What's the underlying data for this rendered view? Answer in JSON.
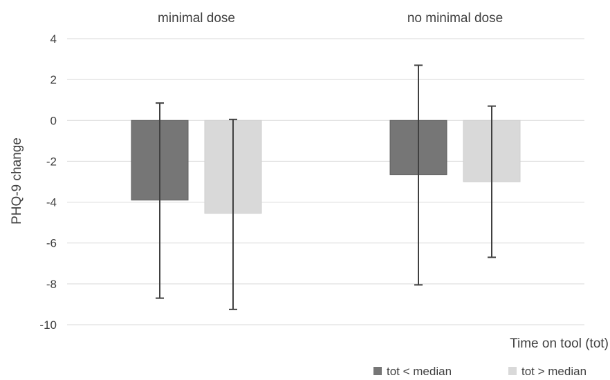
{
  "chart_data": {
    "type": "bar",
    "title": "",
    "categories": [
      "minimal dose",
      "no minimal dose"
    ],
    "ylabel": "PHQ-9 change",
    "xlabel": "Time on tool (tot)",
    "ylim": [
      -10,
      4
    ],
    "yticks": [
      4,
      2,
      0,
      -2,
      -4,
      -6,
      -8,
      -10
    ],
    "grid": true,
    "legend_position": "bottom-right",
    "series": [
      {
        "name": "tot < median",
        "color": "#767676",
        "values": [
          -3.9,
          -2.65
        ],
        "error_low": [
          -8.7,
          -8.05
        ],
        "error_high": [
          0.85,
          2.7
        ]
      },
      {
        "name": "tot > median",
        "color": "#d9d9d9",
        "values": [
          -4.55,
          -3.0
        ],
        "error_low": [
          -9.25,
          -6.7
        ],
        "error_high": [
          0.05,
          0.7
        ]
      }
    ]
  }
}
